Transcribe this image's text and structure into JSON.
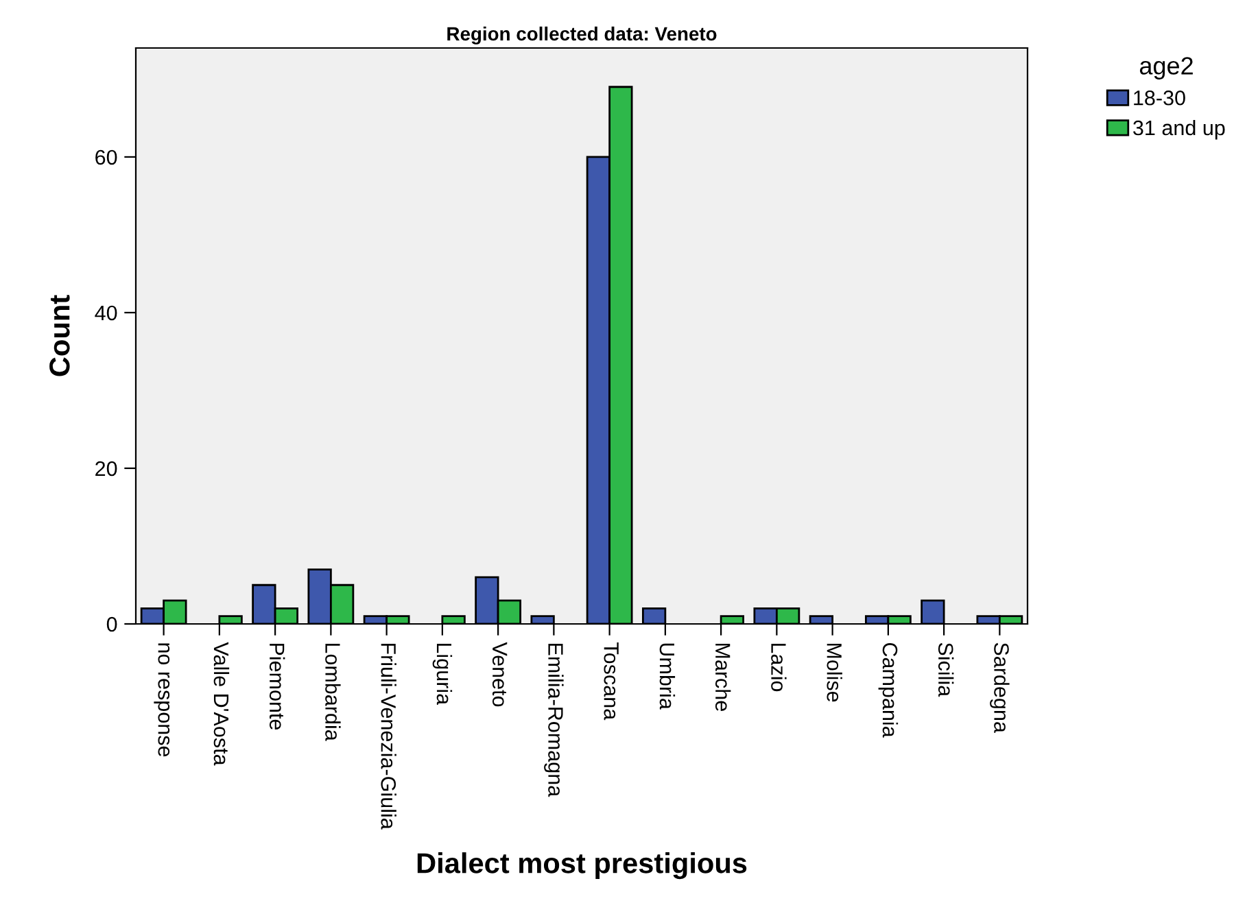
{
  "chart_data": {
    "type": "bar",
    "title": "Region collected data: Veneto",
    "xlabel": "Dialect most prestigious",
    "ylabel": "Count",
    "legend_title": "age2",
    "legend": "top right",
    "categories": [
      "no response",
      "Valle D'Aosta",
      "Piemonte",
      "Lombardia",
      "Friuli-Venezia-Giulia",
      "Liguria",
      "Veneto",
      "Emilia-Romagna",
      "Toscana",
      "Umbria",
      "Marche",
      "Lazio",
      "Molise",
      "Campania",
      "Sicilia",
      "Sardegna"
    ],
    "series": [
      {
        "name": "18-30",
        "color": "#3e58ac",
        "values": [
          2,
          null,
          5,
          7,
          1,
          null,
          6,
          1,
          60,
          2,
          null,
          2,
          1,
          1,
          3,
          1
        ]
      },
      {
        "name": "31 and up",
        "color": "#2eb84a",
        "values": [
          3,
          1,
          2,
          5,
          1,
          1,
          3,
          null,
          69,
          null,
          1,
          2,
          null,
          1,
          null,
          1
        ]
      }
    ],
    "ylim": [
      0,
      74
    ],
    "yticks": [
      0,
      20,
      40,
      60
    ],
    "grid": false
  }
}
